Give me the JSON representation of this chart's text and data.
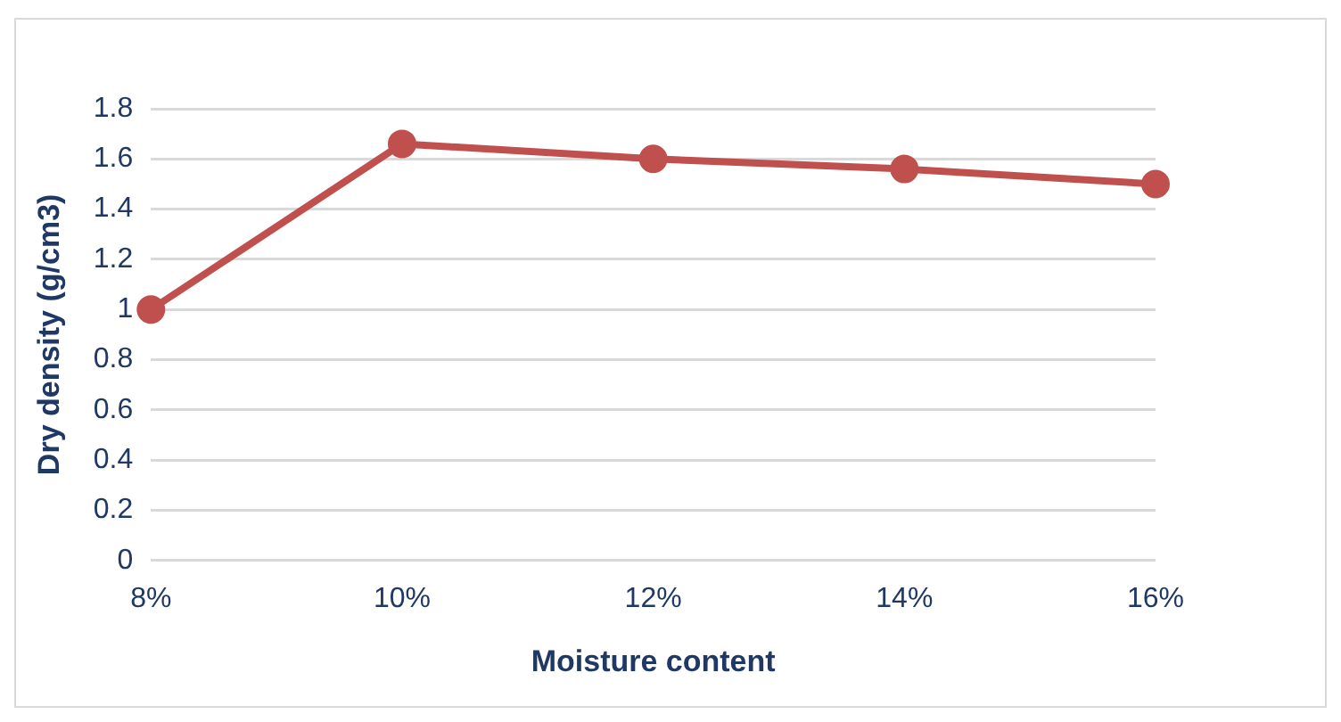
{
  "chart_data": {
    "type": "line",
    "xlabel": "Moisture content",
    "ylabel": "Dry density (g/cm3)",
    "categories": [
      "8%",
      "10%",
      "12%",
      "14%",
      "16%"
    ],
    "series": [
      {
        "color": "#c0504d",
        "values": [
          1.0,
          1.66,
          1.6,
          1.56,
          1.5
        ]
      }
    ],
    "ylim": [
      0,
      1.8
    ],
    "yticks": [
      0,
      0.2,
      0.4,
      0.6,
      0.8,
      1,
      1.2,
      1.4,
      1.6,
      1.8
    ],
    "grid": "y",
    "marker": "circle",
    "legend": false
  }
}
